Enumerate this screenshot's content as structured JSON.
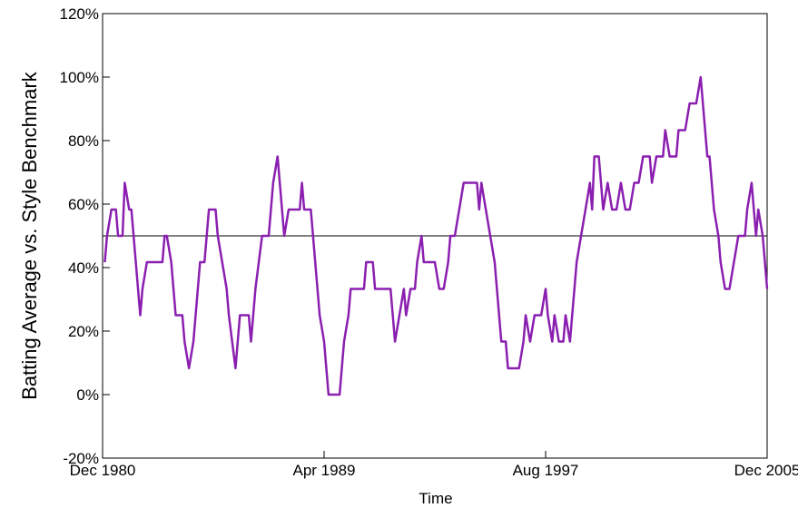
{
  "chart_data": {
    "type": "line",
    "x_label": "Time",
    "y_label": "Batting Average vs. Style Benchmark",
    "x": [
      "1981-01",
      "1981-02",
      "1981-04",
      "1981-06",
      "1981-07",
      "1981-09",
      "1981-10",
      "1981-12",
      "1982-01",
      "1982-02",
      "1982-05",
      "1982-06",
      "1982-08",
      "1983-03",
      "1983-04",
      "1983-05",
      "1983-07",
      "1983-09",
      "1983-12",
      "1984-01",
      "1984-03",
      "1984-05",
      "1984-06",
      "1984-08",
      "1984-10",
      "1984-12",
      "1985-03",
      "1985-04",
      "1985-06",
      "1985-08",
      "1985-09",
      "1985-12",
      "1986-02",
      "1986-06",
      "1986-07",
      "1986-09",
      "1986-12",
      "1987-03",
      "1987-05",
      "1987-07",
      "1987-09",
      "1987-10",
      "1987-12",
      "1988-05",
      "1988-06",
      "1988-07",
      "1988-10",
      "1988-11",
      "1989-02",
      "1989-04",
      "1989-06",
      "1989-11",
      "1990-01",
      "1990-03",
      "1990-04",
      "1990-10",
      "1990-11",
      "1991-02",
      "1991-03",
      "1991-10",
      "1991-12",
      "1992-02",
      "1992-04",
      "1992-05",
      "1992-07",
      "1992-09",
      "1992-10",
      "1992-12",
      "1993-01",
      "1993-06",
      "1993-08",
      "1993-10",
      "1993-12",
      "1994-01",
      "1994-03",
      "1994-05",
      "1994-07",
      "1995-01",
      "1995-02",
      "1995-03",
      "1995-05",
      "1995-07",
      "1995-09",
      "1995-12",
      "1996-02",
      "1996-03",
      "1996-08",
      "1996-10",
      "1996-11",
      "1997-01",
      "1997-03",
      "1997-06",
      "1997-08",
      "1997-09",
      "1997-11",
      "1997-12",
      "1998-02",
      "1998-04",
      "1998-05",
      "1998-07",
      "1998-10",
      "1998-12",
      "1999-02",
      "1999-04",
      "1999-05",
      "1999-06",
      "1999-08",
      "1999-10",
      "1999-12",
      "2000-02",
      "2000-04",
      "2000-06",
      "2000-08",
      "2000-10",
      "2000-12",
      "2001-02",
      "2001-04",
      "2001-07",
      "2001-08",
      "2001-10",
      "2002-01",
      "2002-02",
      "2002-04",
      "2002-07",
      "2002-08",
      "2002-11",
      "2003-01",
      "2003-04",
      "2003-06",
      "2003-07",
      "2003-09",
      "2003-10",
      "2003-12",
      "2004-02",
      "2004-03",
      "2004-05",
      "2004-07",
      "2004-09",
      "2004-11",
      "2005-02",
      "2005-03",
      "2005-05",
      "2005-06",
      "2005-07",
      "2005-08",
      "2005-10",
      "2005-11",
      "2005-12"
    ],
    "series": [
      {
        "color": "#8a1fb0",
        "values": [
          41.7,
          50,
          58.3,
          58.3,
          50,
          50,
          66.7,
          58.3,
          58.3,
          50,
          25,
          33.3,
          41.7,
          41.7,
          50,
          50,
          41.7,
          25,
          25,
          16.7,
          8.3,
          16.7,
          25,
          41.7,
          41.7,
          58.3,
          58.3,
          50,
          41.7,
          33.3,
          25,
          8.3,
          25,
          25,
          16.7,
          33.3,
          50,
          50,
          66.7,
          75,
          58.3,
          50,
          58.3,
          58.3,
          66.7,
          58.3,
          58.3,
          50,
          25,
          16.7,
          0,
          0,
          16.7,
          25,
          33.3,
          33.3,
          41.7,
          41.7,
          33.3,
          33.3,
          16.7,
          25,
          33.3,
          25,
          33.3,
          33.3,
          41.7,
          50,
          41.7,
          41.7,
          33.3,
          33.3,
          41.7,
          50,
          50,
          58.3,
          66.7,
          66.7,
          58.3,
          66.7,
          58.3,
          50,
          41.7,
          16.7,
          16.7,
          8.3,
          8.3,
          16.7,
          25,
          16.7,
          25,
          25,
          33.3,
          25,
          16.7,
          25,
          16.7,
          16.7,
          25,
          16.7,
          41.7,
          50,
          58.3,
          66.7,
          58.3,
          75,
          75,
          58.3,
          66.7,
          58.3,
          58.3,
          66.7,
          58.3,
          58.3,
          66.7,
          66.7,
          75,
          75,
          66.7,
          75,
          75,
          83.3,
          75,
          75,
          83.3,
          83.3,
          91.7,
          91.7,
          100,
          91.7,
          75,
          75,
          58.3,
          50,
          41.7,
          33.3,
          33.3,
          41.7,
          50,
          50,
          58.3,
          66.7,
          58.3,
          50,
          58.3,
          50,
          41.7,
          33.3
        ]
      }
    ],
    "reference_line": 50,
    "xlim": [
      "1980-12",
      "2005-12"
    ],
    "xticks": [
      {
        "value": "1980-12",
        "label": "Dec 1980"
      },
      {
        "value": "1989-04",
        "label": "Apr 1989"
      },
      {
        "value": "1997-08",
        "label": "Aug 1997"
      },
      {
        "value": "2005-12",
        "label": "Dec 2005"
      }
    ],
    "ylim": [
      -20,
      120
    ],
    "yticks": [
      {
        "value": -20,
        "label": "-20%"
      },
      {
        "value": 0,
        "label": "0%"
      },
      {
        "value": 20,
        "label": "20%"
      },
      {
        "value": 40,
        "label": "40%"
      },
      {
        "value": 60,
        "label": "60%"
      },
      {
        "value": 80,
        "label": "80%"
      },
      {
        "value": 100,
        "label": "100%"
      },
      {
        "value": 120,
        "label": "120%"
      }
    ]
  }
}
